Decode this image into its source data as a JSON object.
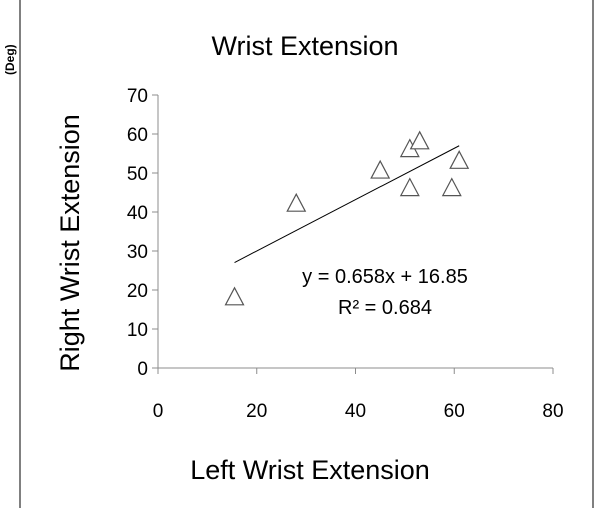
{
  "chart_data": {
    "type": "scatter",
    "title": "Wrist Extension",
    "xlabel": "Left Wrist Extension",
    "ylabel": "Right Wrist Extension",
    "unit_label": "(Deg)",
    "xlim": [
      0,
      80
    ],
    "ylim": [
      0,
      70
    ],
    "x_ticks": [
      0,
      20,
      40,
      60,
      80
    ],
    "y_ticks": [
      0,
      10,
      20,
      30,
      40,
      50,
      60,
      70
    ],
    "grid": false,
    "legend": "none",
    "marker": "open-triangle",
    "points": [
      {
        "x": 15.5,
        "y": 18
      },
      {
        "x": 28,
        "y": 42
      },
      {
        "x": 45,
        "y": 50.5
      },
      {
        "x": 51,
        "y": 56
      },
      {
        "x": 53,
        "y": 58
      },
      {
        "x": 51,
        "y": 46
      },
      {
        "x": 59.5,
        "y": 46
      },
      {
        "x": 61,
        "y": 53
      }
    ],
    "trendline": {
      "type": "linear",
      "slope": 0.658,
      "intercept": 16.85,
      "x_range": [
        15.5,
        61
      ]
    },
    "annotations": {
      "equation": "y = 0.658x + 16.85",
      "r_squared": "R² = 0.684"
    }
  }
}
